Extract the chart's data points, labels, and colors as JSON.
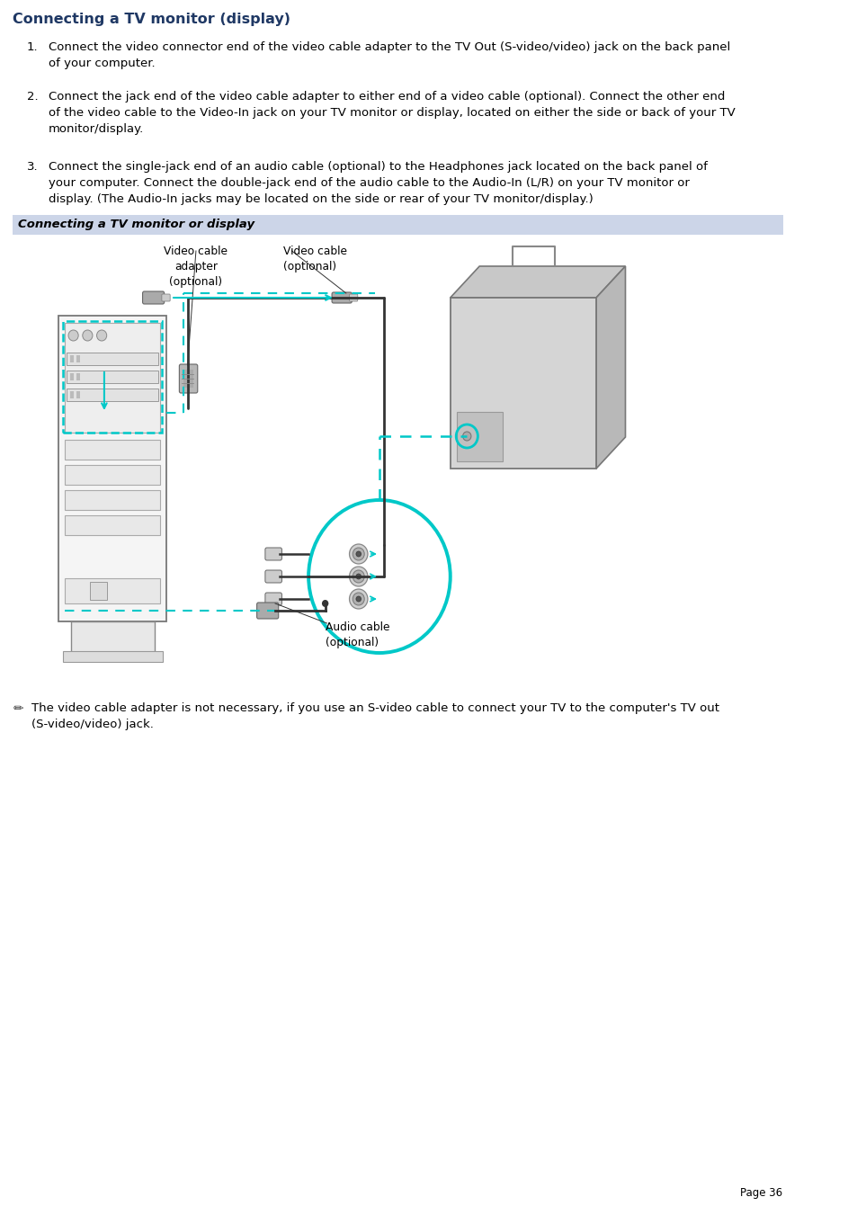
{
  "title": "Connecting a TV monitor (display)",
  "title_color": "#1F3864",
  "background_color": "#ffffff",
  "section_banner_color": "#ccd5e8",
  "section_banner_text": "Connecting a TV monitor or display",
  "body_text_color": "#000000",
  "body_font_size": 9.5,
  "title_font_size": 11.5,
  "item1": "Connect the video connector end of the video cable adapter to the TV Out (S-video/video) jack on the back panel\nof your computer.",
  "item2": "Connect the jack end of the video cable adapter to either end of a video cable (optional). Connect the other end\nof the video cable to the Video-In jack on your TV monitor or display, located on either the side or back of your TV\nmonitor/display.",
  "item3": "Connect the single-jack end of an audio cable (optional) to the Headphones jack located on the back panel of\nyour computer. Connect the double-jack end of the audio cable to the Audio-In (L/R) on your TV monitor or\ndisplay. (The Audio-In jacks may be located on the side or rear of your TV monitor/display.)",
  "note_text": "The video cable adapter is not necessary, if you use an S-video cable to connect your TV to the computer's TV out\n(S-video/video) jack.",
  "page_number": "Page 36",
  "cyan": "#00C8C8",
  "dark": "#333333",
  "gray_light": "#e8e8e8",
  "gray_mid": "#cccccc",
  "gray_dark": "#888888",
  "label_adapter": "Video cable\nadapter\n(optional)",
  "label_video_cable": "Video cable\n(optional)",
  "label_audio_cable": "Audio cable\n(optional)"
}
